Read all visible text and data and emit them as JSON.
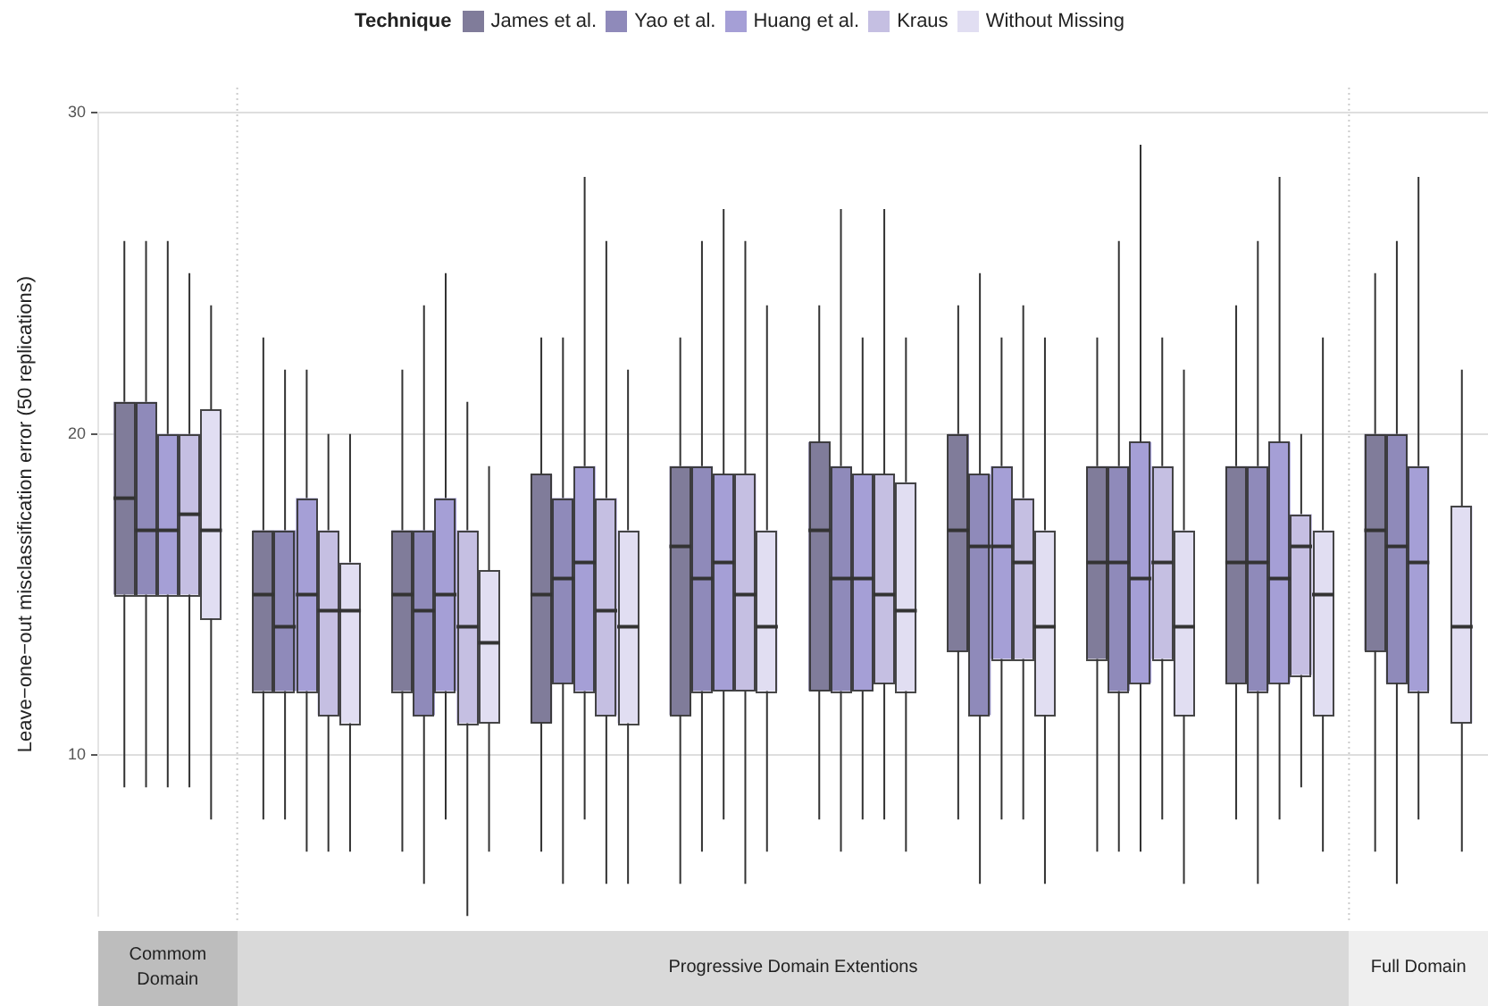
{
  "chart_data": {
    "type": "box",
    "categories": [
      null,
      null,
      null,
      null,
      null,
      null,
      null,
      null,
      null,
      null
    ],
    "ylabel": "Leave−one−out misclassification error (50 replications)",
    "legend_title": "Technique",
    "legend": "top",
    "grid": "y",
    "tick_labels": "y",
    "ylim": [
      5,
      30
    ],
    "yticks": [
      10,
      20,
      30
    ],
    "annotations": [
      "Commom Domain",
      "Progressive Domain Extentions",
      "Full Domain"
    ],
    "series": [
      {
        "name": "James et al.",
        "color": "#807c9a",
        "boxes": [
          {
            "low": 9,
            "q1": 15,
            "median": 18,
            "q3": 21,
            "high": 26
          },
          {
            "low": 8,
            "q1": 12,
            "median": 15,
            "q3": 17,
            "high": 23
          },
          {
            "low": 7,
            "q1": 12,
            "median": 15,
            "q3": 17,
            "high": 22
          },
          {
            "low": 7,
            "q1": 11,
            "median": 15,
            "q3": 18.75,
            "high": 23
          },
          {
            "low": 6,
            "q1": 11.25,
            "median": 16.5,
            "q3": 19,
            "high": 23
          },
          {
            "low": 8,
            "q1": 12,
            "median": 17,
            "q3": 19.75,
            "high": 24
          },
          {
            "low": 8,
            "q1": 13.25,
            "median": 17,
            "q3": 20,
            "high": 24
          },
          {
            "low": 7,
            "q1": 13,
            "median": 16,
            "q3": 19,
            "high": 23
          },
          {
            "low": 8,
            "q1": 12.25,
            "median": 16,
            "q3": 19,
            "high": 24
          },
          {
            "low": 7,
            "q1": 13.25,
            "median": 17,
            "q3": 20,
            "high": 25
          }
        ]
      },
      {
        "name": "Yao et al.",
        "color": "#8f8aba",
        "boxes": [
          {
            "low": 9,
            "q1": 15,
            "median": 17,
            "q3": 21,
            "high": 26
          },
          {
            "low": 8,
            "q1": 12,
            "median": 14,
            "q3": 17,
            "high": 22
          },
          {
            "low": 6,
            "q1": 11.25,
            "median": 14.5,
            "q3": 17,
            "high": 24
          },
          {
            "low": 6,
            "q1": 12.25,
            "median": 15.5,
            "q3": 18,
            "high": 23
          },
          {
            "low": 7,
            "q1": 12,
            "median": 15.5,
            "q3": 19,
            "high": 26
          },
          {
            "low": 7,
            "q1": 12,
            "median": 15.5,
            "q3": 19,
            "high": 27
          },
          {
            "low": 6,
            "q1": 11.25,
            "median": 16.5,
            "q3": 18.75,
            "high": 25
          },
          {
            "low": 7,
            "q1": 12,
            "median": 16,
            "q3": 19,
            "high": 26
          },
          {
            "low": 6,
            "q1": 12,
            "median": 16,
            "q3": 19,
            "high": 26
          },
          {
            "low": 6,
            "q1": 12.25,
            "median": 16.5,
            "q3": 20,
            "high": 26
          }
        ]
      },
      {
        "name": "Huang et al.",
        "color": "#a59fd6",
        "boxes": [
          {
            "low": 9,
            "q1": 15,
            "median": 17,
            "q3": 20,
            "high": 26
          },
          {
            "low": 7,
            "q1": 12,
            "median": 15,
            "q3": 18,
            "high": 22
          },
          {
            "low": 8,
            "q1": 12,
            "median": 15,
            "q3": 18,
            "high": 25
          },
          {
            "low": 8,
            "q1": 12,
            "median": 16,
            "q3": 19,
            "high": 28
          },
          {
            "low": 8,
            "q1": 12,
            "median": 16,
            "q3": 18.75,
            "high": 27
          },
          {
            "low": 8,
            "q1": 12,
            "median": 15.5,
            "q3": 18.75,
            "high": 23
          },
          {
            "low": 8,
            "q1": 13,
            "median": 16.5,
            "q3": 19,
            "high": 23
          },
          {
            "low": 7,
            "q1": 12.25,
            "median": 15.5,
            "q3": 19.75,
            "high": 29
          },
          {
            "low": 8,
            "q1": 12.25,
            "median": 15.5,
            "q3": 19.75,
            "high": 28
          },
          {
            "low": 8,
            "q1": 12,
            "median": 16,
            "q3": 19,
            "high": 28
          }
        ]
      },
      {
        "name": "Kraus",
        "color": "#c5bfe2",
        "boxes": [
          {
            "low": 9,
            "q1": 15,
            "median": 17.5,
            "q3": 20,
            "high": 25
          },
          {
            "low": 7,
            "q1": 11.25,
            "median": 14.5,
            "q3": 17,
            "high": 20
          },
          {
            "low": 5,
            "q1": 11,
            "median": 14,
            "q3": 17,
            "high": 21
          },
          {
            "low": 6,
            "q1": 11.25,
            "median": 14.5,
            "q3": 18,
            "high": 26
          },
          {
            "low": 6,
            "q1": 12,
            "median": 15,
            "q3": 18.75,
            "high": 26
          },
          {
            "low": 8,
            "q1": 12.25,
            "median": 15,
            "q3": 18.75,
            "high": 27
          },
          {
            "low": 8,
            "q1": 13,
            "median": 16,
            "q3": 18,
            "high": 24
          },
          {
            "low": 8,
            "q1": 13,
            "median": 16,
            "q3": 19,
            "high": 23
          },
          {
            "low": 9,
            "q1": 12.5,
            "median": 16.5,
            "q3": 17.5,
            "high": 20
          },
          null
        ]
      },
      {
        "name": "Without Missing",
        "color": "#e1def2",
        "boxes": [
          {
            "low": 8,
            "q1": 14.25,
            "median": 17,
            "q3": 20.75,
            "high": 24
          },
          {
            "low": 7,
            "q1": 11,
            "median": 14.5,
            "q3": 16,
            "high": 20
          },
          {
            "low": 7,
            "q1": 11,
            "median": 13.5,
            "q3": 15.75,
            "high": 19
          },
          {
            "low": 6,
            "q1": 11,
            "median": 14,
            "q3": 17,
            "high": 22
          },
          {
            "low": 7,
            "q1": 12,
            "median": 14,
            "q3": 17,
            "high": 24
          },
          {
            "low": 7,
            "q1": 12,
            "median": 14.5,
            "q3": 18.5,
            "high": 23
          },
          {
            "low": 6,
            "q1": 11.25,
            "median": 14,
            "q3": 17,
            "high": 23
          },
          {
            "low": 6,
            "q1": 11.25,
            "median": 14,
            "q3": 17,
            "high": 22
          },
          {
            "low": 7,
            "q1": 11.25,
            "median": 15,
            "q3": 17,
            "high": 23
          },
          {
            "low": 7,
            "q1": 11,
            "median": 14,
            "q3": 17.75,
            "high": 22
          }
        ]
      }
    ]
  }
}
